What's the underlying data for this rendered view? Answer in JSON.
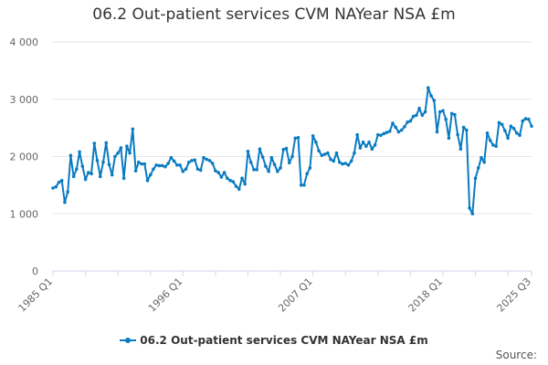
{
  "chart_data": {
    "type": "line",
    "title": "06.2 Out-patient services CVM NAYear NSA £m",
    "xlabel": "",
    "ylabel": "",
    "start_period": "1985 Q1",
    "frequency": "quarterly",
    "ylim": [
      0,
      4000
    ],
    "y_ticks": [
      0,
      1000,
      2000,
      3000,
      4000
    ],
    "y_tick_labels": [
      "0",
      "1 000",
      "2 000",
      "3 000",
      "4 000"
    ],
    "x_tick_labels": [
      "1985 Q1",
      "1996 Q1",
      "2007 Q1",
      "2018 Q1",
      "2025 Q3"
    ],
    "x_tick_indices": [
      0,
      44,
      88,
      132,
      162
    ],
    "grid": true,
    "legend_position": "bottom",
    "series": [
      {
        "name": "06.2 Out-patient services CVM NAYear NSA £m",
        "color": "#0a7bc1",
        "values": [
          1450,
          1470,
          1550,
          1580,
          1200,
          1380,
          2020,
          1650,
          1780,
          2080,
          1830,
          1600,
          1720,
          1700,
          2230,
          1930,
          1650,
          1900,
          2240,
          1860,
          1680,
          2000,
          2060,
          2150,
          1620,
          2180,
          2060,
          2480,
          1750,
          1900,
          1870,
          1870,
          1580,
          1680,
          1780,
          1850,
          1840,
          1840,
          1820,
          1880,
          1980,
          1920,
          1850,
          1850,
          1740,
          1780,
          1900,
          1930,
          1940,
          1780,
          1760,
          1980,
          1950,
          1930,
          1880,
          1750,
          1720,
          1640,
          1720,
          1620,
          1580,
          1560,
          1480,
          1430,
          1620,
          1520,
          2090,
          1900,
          1770,
          1770,
          2130,
          1990,
          1830,
          1740,
          1980,
          1860,
          1740,
          1800,
          2120,
          2140,
          1890,
          2000,
          2320,
          2330,
          1500,
          1500,
          1700,
          1800,
          2360,
          2250,
          2100,
          2020,
          2040,
          2060,
          1950,
          1920,
          2060,
          1900,
          1870,
          1880,
          1850,
          1920,
          2060,
          2380,
          2150,
          2250,
          2180,
          2250,
          2130,
          2200,
          2380,
          2370,
          2400,
          2420,
          2440,
          2580,
          2510,
          2430,
          2460,
          2520,
          2600,
          2620,
          2700,
          2720,
          2840,
          2720,
          2780,
          3200,
          3060,
          2980,
          2430,
          2780,
          2800,
          2650,
          2320,
          2750,
          2730,
          2380,
          2130,
          2510,
          2460,
          1100,
          1000,
          1620,
          1800,
          1980,
          1900,
          2410,
          2280,
          2200,
          2180,
          2590,
          2560,
          2450,
          2320,
          2530,
          2490,
          2410,
          2370,
          2620,
          2660,
          2650,
          2530
        ]
      }
    ]
  },
  "source_label": "Source:"
}
